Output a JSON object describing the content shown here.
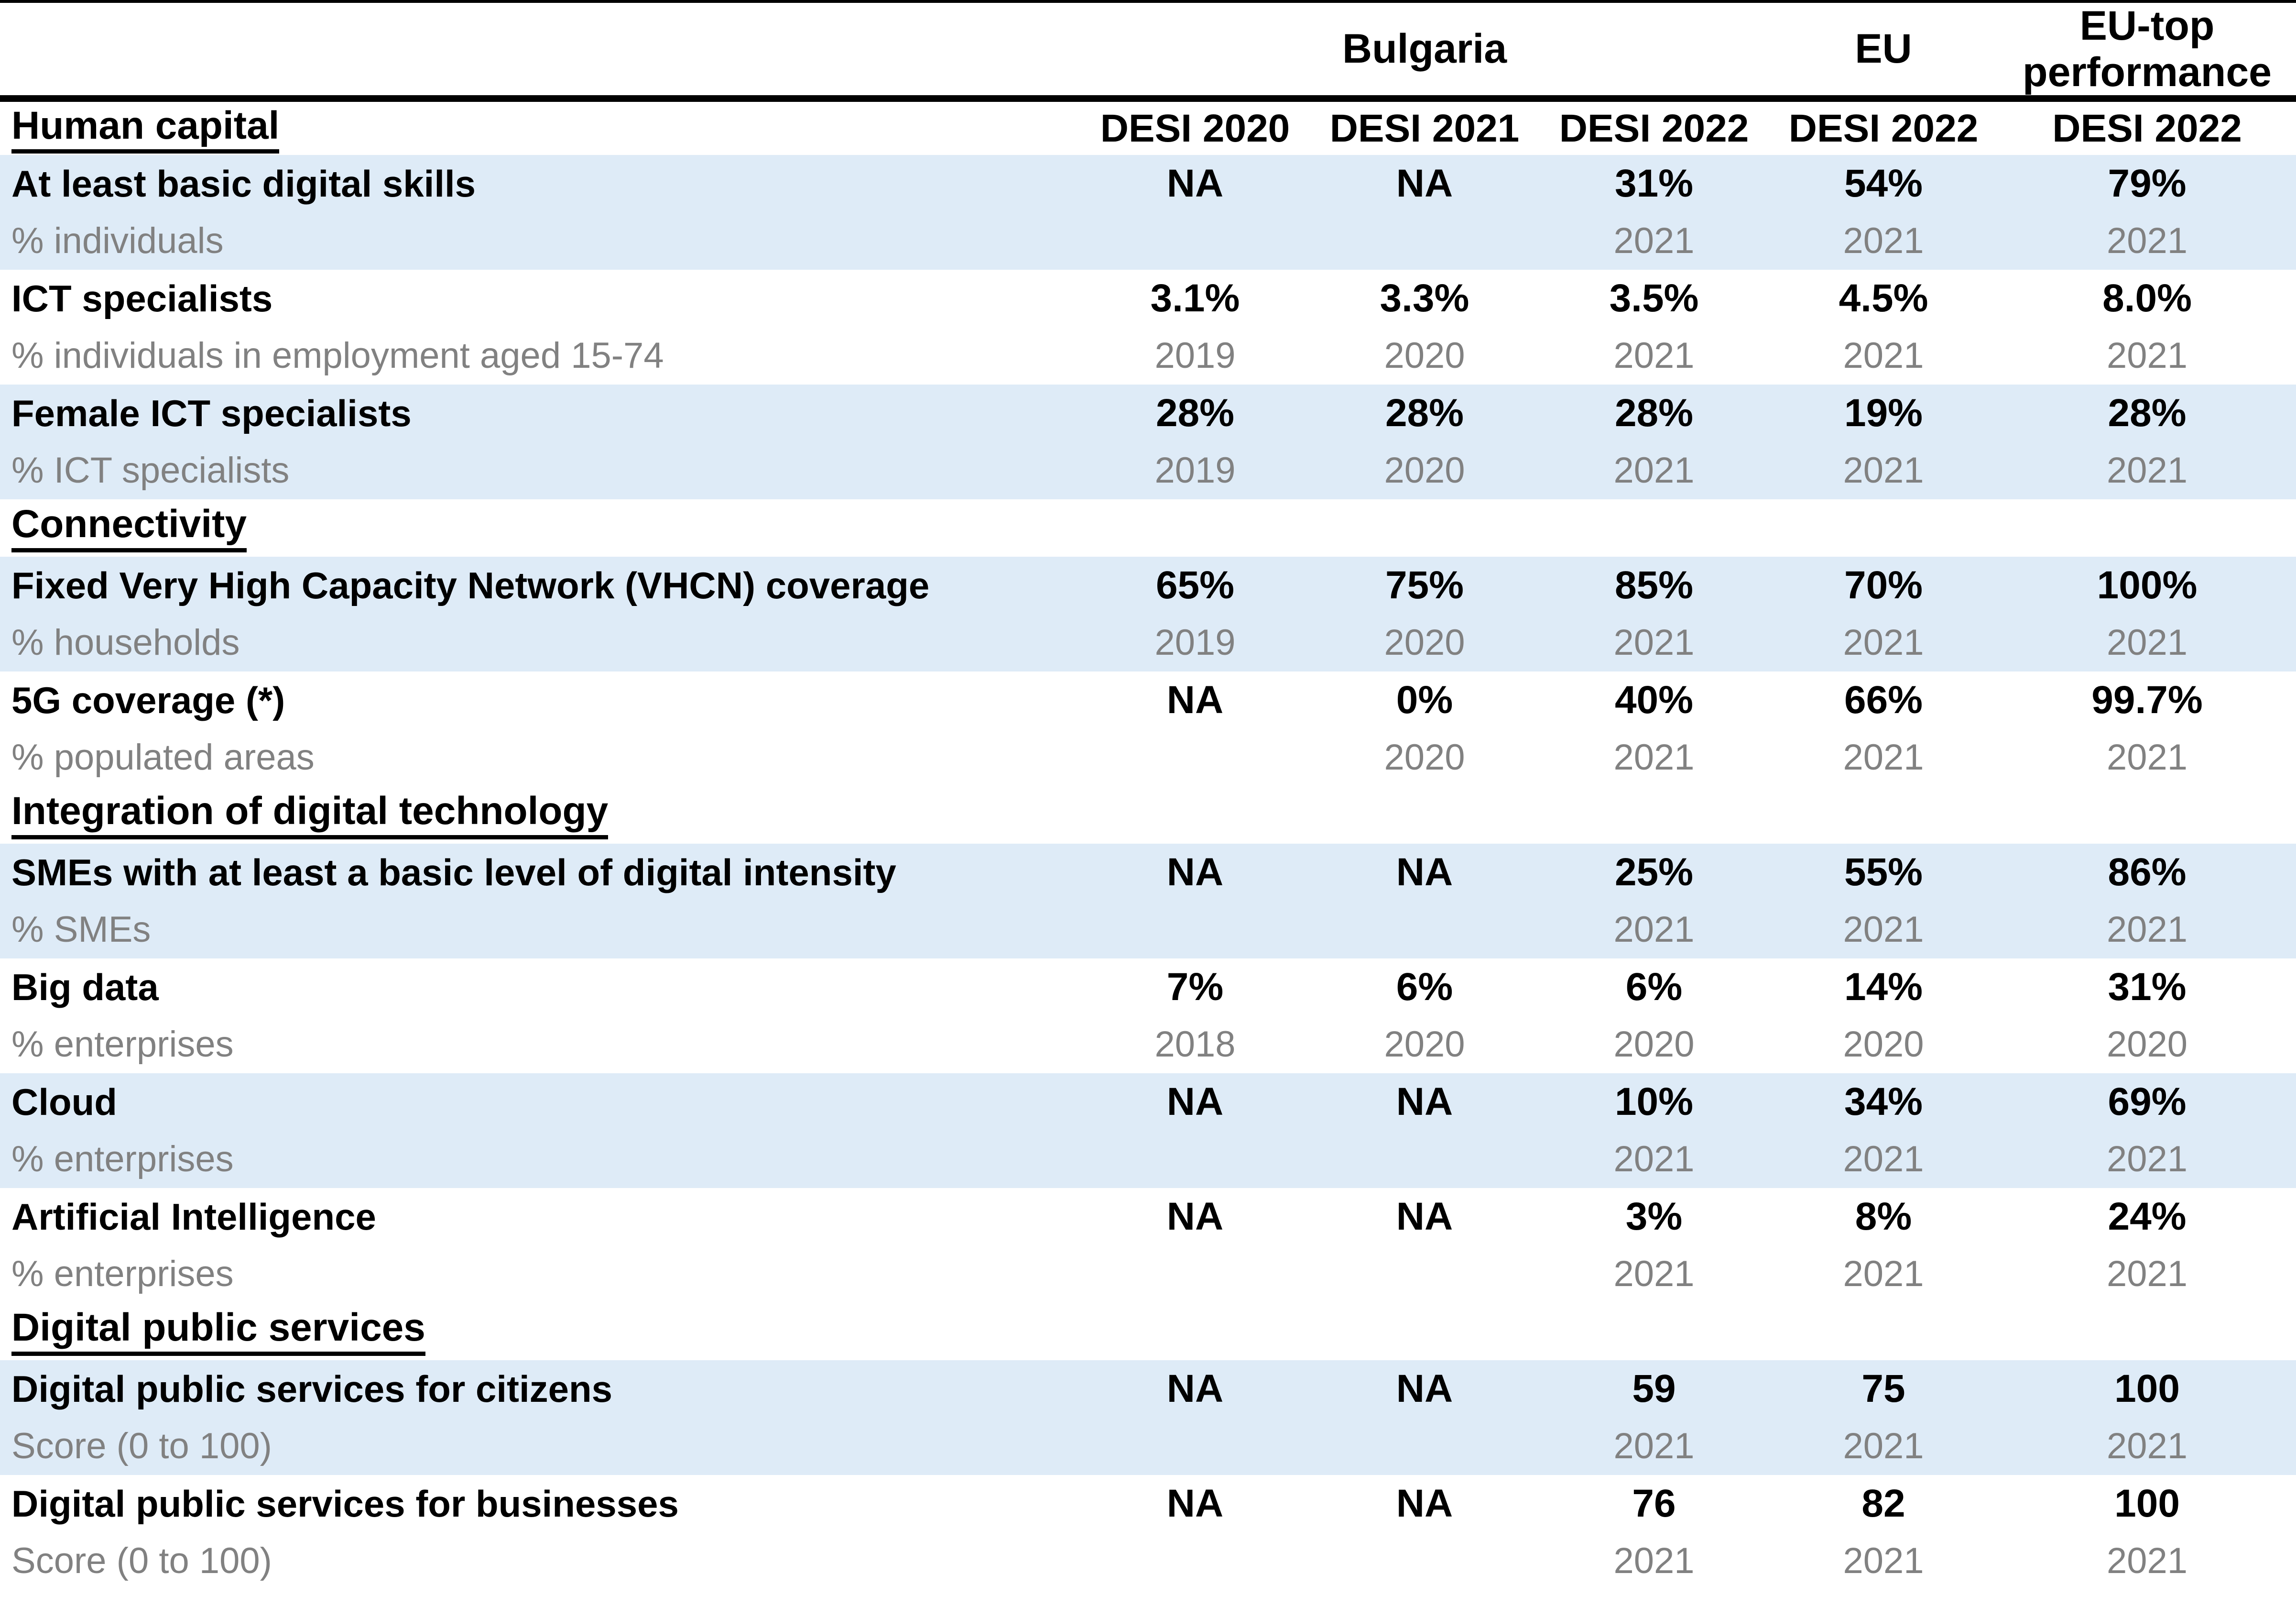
{
  "header": {
    "bulgaria": "Bulgaria",
    "eu": "EU",
    "eu_top": "EU-top performance"
  },
  "desi_labels": [
    "DESI 2020",
    "DESI 2021",
    "DESI 2022",
    "DESI 2022",
    "DESI 2022"
  ],
  "sections": [
    {
      "title": "Human capital",
      "rows": [
        {
          "name": "At least basic digital skills",
          "unit": "% individuals",
          "values": [
            "NA",
            "NA",
            "31%",
            "54%",
            "79%"
          ],
          "years": [
            "",
            "",
            "2021",
            "2021",
            "2021"
          ]
        },
        {
          "name": "ICT specialists",
          "unit": "% individuals in employment aged 15-74",
          "values": [
            "3.1%",
            "3.3%",
            "3.5%",
            "4.5%",
            "8.0%"
          ],
          "years": [
            "2019",
            "2020",
            "2021",
            "2021",
            "2021"
          ]
        },
        {
          "name": "Female ICT specialists",
          "unit": "% ICT specialists",
          "values": [
            "28%",
            "28%",
            "28%",
            "19%",
            "28%"
          ],
          "years": [
            "2019",
            "2020",
            "2021",
            "2021",
            "2021"
          ]
        }
      ]
    },
    {
      "title": "Connectivity",
      "rows": [
        {
          "name": "Fixed Very High Capacity Network (VHCN) coverage",
          "unit": "% households",
          "values": [
            "65%",
            "75%",
            "85%",
            "70%",
            "100%"
          ],
          "years": [
            "2019",
            "2020",
            "2021",
            "2021",
            "2021"
          ]
        },
        {
          "name": "5G coverage (*)",
          "unit": "% populated areas",
          "values": [
            "NA",
            "0%",
            "40%",
            "66%",
            "99.7%"
          ],
          "years": [
            "",
            "2020",
            "2021",
            "2021",
            "2021"
          ]
        }
      ]
    },
    {
      "title": "Integration of digital technology",
      "rows": [
        {
          "name": "SMEs with at least a basic level of digital intensity",
          "unit": "% SMEs",
          "values": [
            "NA",
            "NA",
            "25%",
            "55%",
            "86%"
          ],
          "years": [
            "",
            "",
            "2021",
            "2021",
            "2021"
          ]
        },
        {
          "name": "Big data",
          "unit": "% enterprises",
          "values": [
            "7%",
            "6%",
            "6%",
            "14%",
            "31%"
          ],
          "years": [
            "2018",
            "2020",
            "2020",
            "2020",
            "2020"
          ]
        },
        {
          "name": "Cloud",
          "unit": "% enterprises",
          "values": [
            "NA",
            "NA",
            "10%",
            "34%",
            "69%"
          ],
          "years": [
            "",
            "",
            "2021",
            "2021",
            "2021"
          ]
        },
        {
          "name": "Artificial Intelligence",
          "unit": "% enterprises",
          "values": [
            "NA",
            "NA",
            "3%",
            "8%",
            "24%"
          ],
          "years": [
            "",
            "",
            "2021",
            "2021",
            "2021"
          ]
        }
      ]
    },
    {
      "title": "Digital public services",
      "rows": [
        {
          "name": "Digital public services for citizens",
          "unit": "Score (0 to 100)",
          "values": [
            "NA",
            "NA",
            "59",
            "75",
            "100"
          ],
          "years": [
            "",
            "",
            "2021",
            "2021",
            "2021"
          ]
        },
        {
          "name": "Digital public services for businesses",
          "unit": "Score (0 to 100)",
          "values": [
            "NA",
            "NA",
            "76",
            "82",
            "100"
          ],
          "years": [
            "",
            "",
            "2021",
            "2021",
            "2021"
          ]
        }
      ]
    }
  ],
  "colors": {
    "row_highlight": "#deebf7",
    "muted_text": "#818181",
    "text": "#000000"
  }
}
